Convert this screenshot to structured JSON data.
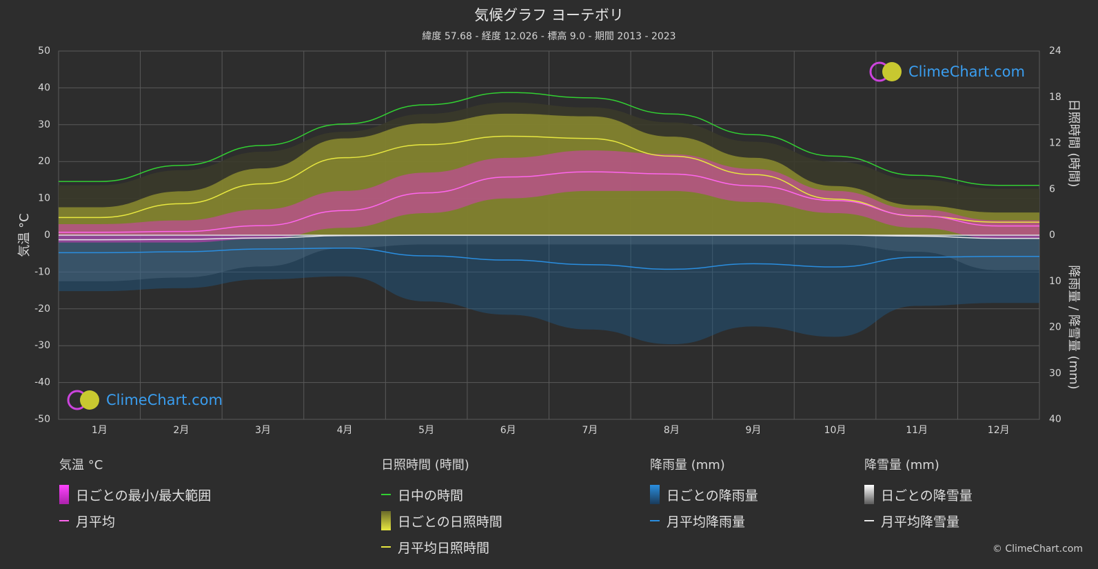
{
  "title": "気候グラフ ヨーテボリ",
  "subtitle": "緯度 57.68 - 経度 12.026 - 標高 9.0 - 期間 2013 - 2023",
  "brand": "ClimeChart.com",
  "copyright": "© ClimeChart.com",
  "chart_data": {
    "type": "line",
    "categories": [
      "1月",
      "2月",
      "3月",
      "4月",
      "5月",
      "6月",
      "7月",
      "8月",
      "9月",
      "10月",
      "11月",
      "12月"
    ],
    "axes": {
      "left": {
        "label": "気温 °C",
        "ticks": [
          50,
          40,
          30,
          20,
          10,
          0,
          -10,
          -20,
          -30,
          -40,
          -50
        ],
        "range": [
          -50,
          50
        ]
      },
      "right_top": {
        "label": "日照時間 (時間)",
        "ticks": [
          24,
          18,
          12,
          6,
          0
        ],
        "range": [
          0,
          24
        ]
      },
      "right_bottom": {
        "label": "降雨量 / 降雪量 (mm)",
        "ticks": [
          10,
          20,
          30,
          40
        ],
        "range": [
          0,
          40
        ]
      }
    },
    "series": [
      {
        "name": "日中の時間",
        "axis": "right_top",
        "values": [
          7.0,
          9.1,
          11.7,
          14.5,
          17.0,
          18.6,
          17.9,
          15.8,
          13.1,
          10.3,
          7.8,
          6.5
        ],
        "color": "#32d032"
      },
      {
        "name": "月平均日照時間",
        "axis": "right_top",
        "values": [
          2.3,
          4.1,
          6.7,
          10.1,
          11.8,
          12.9,
          12.6,
          10.3,
          7.9,
          4.7,
          2.5,
          1.7
        ],
        "color": "#e8e840"
      },
      {
        "name": "月平均",
        "axis": "left",
        "values": [
          0.8,
          1.0,
          2.6,
          6.7,
          11.5,
          15.8,
          17.2,
          16.6,
          13.4,
          9.4,
          5.3,
          2.5
        ],
        "color": "#ff66ee"
      },
      {
        "name": "月平均降雨量",
        "axis": "right_bottom",
        "values": [
          3.8,
          3.6,
          3.0,
          2.8,
          4.5,
          5.4,
          6.4,
          7.4,
          6.2,
          6.9,
          4.8,
          4.6
        ],
        "color": "#2a8ee0"
      },
      {
        "name": "月平均降雪量",
        "axis": "right_bottom",
        "values": [
          1.0,
          0.9,
          0.6,
          0.1,
          0.0,
          0.0,
          0.0,
          0.0,
          0.0,
          0.0,
          0.2,
          0.7
        ],
        "color": "#e8e8e8"
      }
    ],
    "bands": {
      "temp_min": [
        -2,
        -2,
        -1,
        2,
        6,
        10,
        12,
        12,
        9,
        6,
        2,
        -1
      ],
      "temp_max": [
        3,
        4,
        7,
        12,
        17,
        21,
        23,
        22,
        18,
        12,
        7,
        4
      ]
    },
    "grid": true
  },
  "legend": {
    "temperature": {
      "title": "気温 °C",
      "items": [
        "日ごとの最小/最大範囲",
        "月平均"
      ]
    },
    "sunshine": {
      "title": "日照時間 (時間)",
      "items": [
        "日中の時間",
        "日ごとの日照時間",
        "月平均日照時間"
      ]
    },
    "rain": {
      "title": "降雨量 (mm)",
      "items": [
        "日ごとの降雨量",
        "月平均降雨量"
      ]
    },
    "snow": {
      "title": "降雪量 (mm)",
      "items": [
        "日ごとの降雪量",
        "月平均降雪量"
      ]
    }
  },
  "colors": {
    "background": "#2d2d2d",
    "grid": "#5a5a5a",
    "daylight": "#32d032",
    "sunshine_band": "#b8b832",
    "sunshine_avg": "#e8e840",
    "temp_band": "#d63ab9",
    "temp_avg": "#ff66ee",
    "rain_band": "#1e5a8a",
    "rain_avg": "#2a8ee0",
    "snow_band": "#8a8a8a",
    "snow_avg": "#e8e8e8"
  }
}
